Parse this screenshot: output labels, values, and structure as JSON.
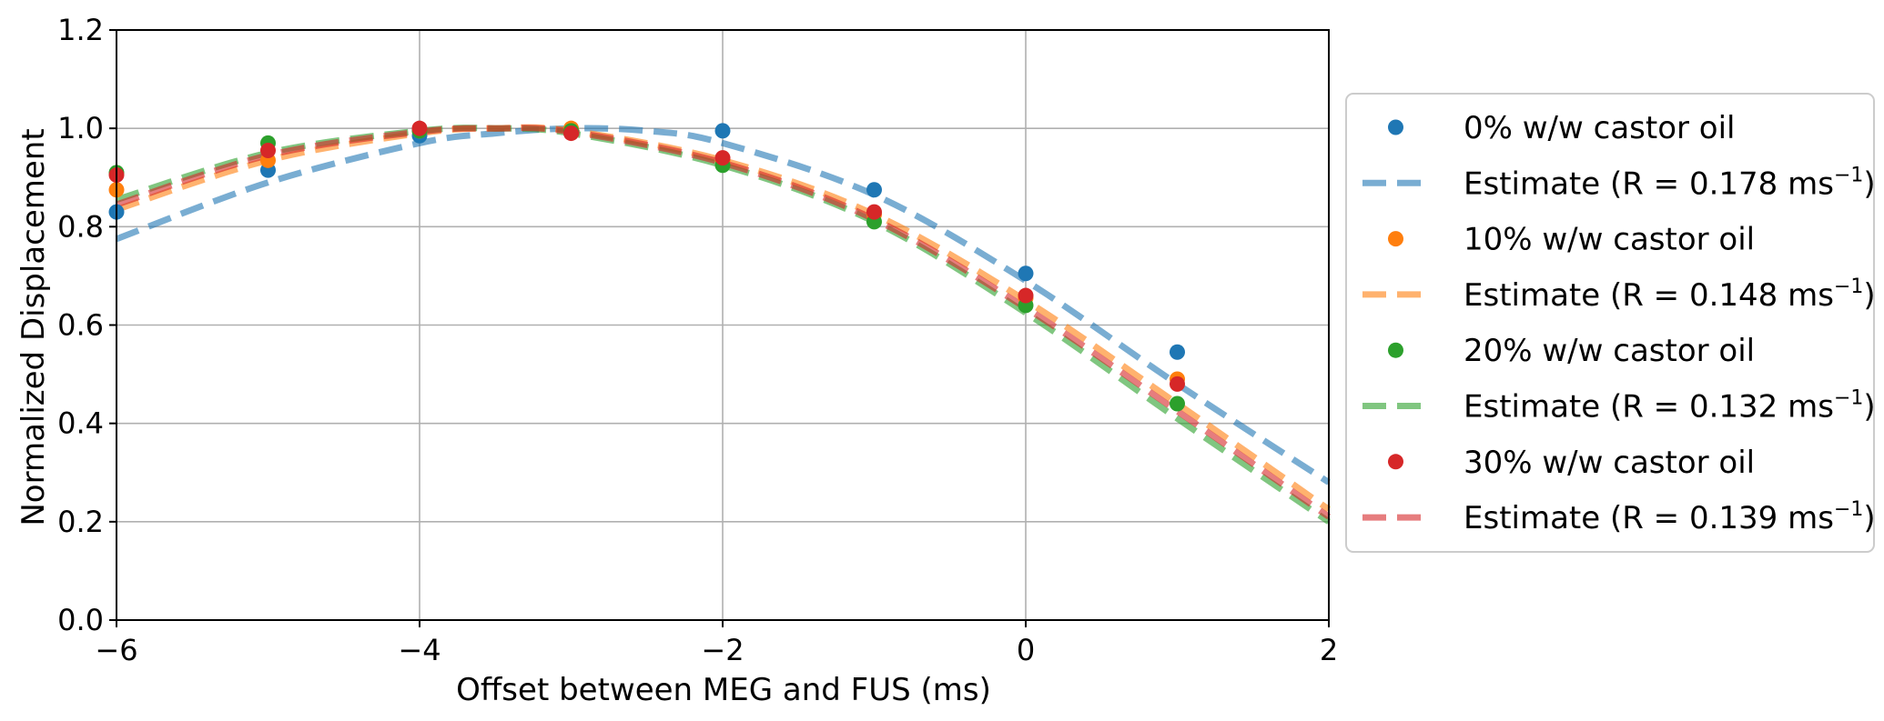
{
  "chart_data": {
    "type": "scatter",
    "xlabel": "Offset between MEG and FUS (ms)",
    "ylabel": "Normalized Displacement",
    "xlim": [
      -6,
      2
    ],
    "ylim": [
      0.0,
      1.2
    ],
    "xticks": [
      -6,
      -4,
      -2,
      0,
      2
    ],
    "xtick_labels": [
      "−6",
      "−4",
      "−2",
      "0",
      "2"
    ],
    "yticks": [
      0.0,
      0.2,
      0.4,
      0.6,
      0.8,
      1.0,
      1.2
    ],
    "ytick_labels": [
      "0.0",
      "0.2",
      "0.4",
      "0.6",
      "0.8",
      "1.0",
      "1.2"
    ],
    "grid": true,
    "legend_placement": "outside-right",
    "series": [
      {
        "name": "0% w/w castor oil",
        "color": "#1f77b4",
        "x": [
          -6,
          -5,
          -4,
          -3,
          -2,
          -1,
          0,
          1
        ],
        "y": [
          0.83,
          0.915,
          0.985,
          0.995,
          0.995,
          0.875,
          0.705,
          0.545
        ],
        "estimate": {
          "name": "Estimate (R = 0.178 ms",
          "unit_sup": "−1",
          "close": ")",
          "x": [
            -6,
            -5,
            -4,
            -3.5,
            -3,
            -2.5,
            -2,
            -1,
            0,
            1,
            2
          ],
          "y": [
            0.775,
            0.89,
            0.97,
            0.99,
            1.0,
            0.995,
            0.97,
            0.865,
            0.69,
            0.48,
            0.28
          ]
        }
      },
      {
        "name": "10% w/w castor oil",
        "color": "#ff7f0e",
        "x": [
          -6,
          -5,
          -4,
          -3,
          -2,
          -1,
          0,
          1
        ],
        "y": [
          0.875,
          0.935,
          0.995,
          1.0,
          0.935,
          0.825,
          0.655,
          0.49
        ],
        "estimate": {
          "name": "Estimate (R = 0.148 ms",
          "unit_sup": "−1",
          "close": ")",
          "x": [
            -6,
            -5,
            -4,
            -3.5,
            -3,
            -2,
            -1,
            0,
            1,
            2
          ],
          "y": [
            0.835,
            0.935,
            0.99,
            1.0,
            0.995,
            0.935,
            0.825,
            0.65,
            0.44,
            0.225
          ]
        }
      },
      {
        "name": "20% w/w castor oil",
        "color": "#2ca02c",
        "x": [
          -6,
          -5,
          -4,
          -3,
          -2,
          -1,
          0,
          1
        ],
        "y": [
          0.91,
          0.97,
          0.995,
          0.995,
          0.925,
          0.81,
          0.64,
          0.44
        ],
        "estimate": {
          "name": "Estimate (R = 0.132 ms",
          "unit_sup": "−1",
          "close": ")",
          "x": [
            -6,
            -5,
            -4,
            -3.5,
            -3,
            -2,
            -1,
            0,
            1,
            2
          ],
          "y": [
            0.855,
            0.95,
            0.995,
            1.0,
            0.99,
            0.925,
            0.81,
            0.625,
            0.41,
            0.2
          ]
        }
      },
      {
        "name": "30% w/w castor oil",
        "color": "#d62728",
        "x": [
          -6,
          -5,
          -4,
          -3,
          -2,
          -1,
          0,
          1
        ],
        "y": [
          0.905,
          0.955,
          1.0,
          0.99,
          0.94,
          0.83,
          0.66,
          0.48
        ],
        "estimate": {
          "name": "Estimate (R = 0.139 ms",
          "unit_sup": "−1",
          "close": ")",
          "x": [
            -6,
            -5,
            -4,
            -3.5,
            -3,
            -2,
            -1,
            0,
            1,
            2
          ],
          "y": [
            0.845,
            0.945,
            0.993,
            1.0,
            0.993,
            0.93,
            0.815,
            0.635,
            0.425,
            0.21
          ]
        }
      }
    ]
  }
}
